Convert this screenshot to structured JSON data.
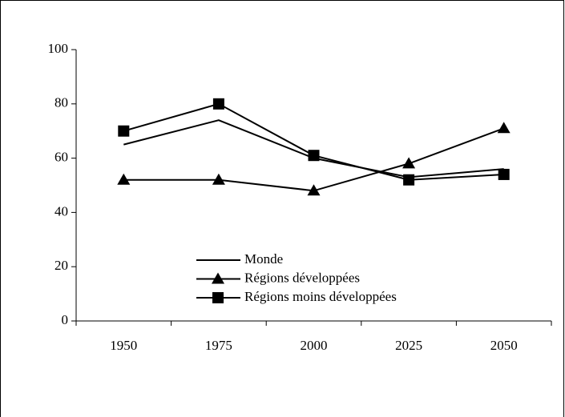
{
  "chart_data": {
    "type": "line",
    "categories": [
      "1950",
      "1975",
      "2000",
      "2025",
      "2050"
    ],
    "series": [
      {
        "name": "Monde",
        "color": "#000000",
        "marker": "none",
        "values": [
          65,
          74,
          60,
          53,
          56
        ]
      },
      {
        "name": "Régions développées",
        "color": "#000000",
        "marker": "triangle",
        "values": [
          52,
          52,
          48,
          58,
          71
        ]
      },
      {
        "name": "Régions moins développées",
        "color": "#000000",
        "marker": "square",
        "values": [
          70,
          80,
          61,
          52,
          54
        ]
      }
    ],
    "ylim": [
      0,
      100
    ],
    "yticks": [
      0,
      20,
      40,
      60,
      80,
      100
    ],
    "grid": false
  }
}
